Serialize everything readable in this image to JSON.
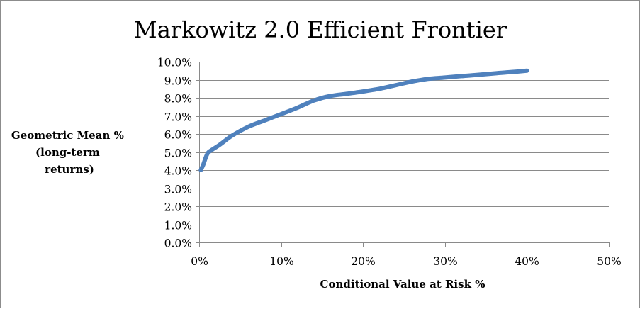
{
  "chart_data": {
    "type": "line",
    "title": "Markowitz 2.0 Efficient Frontier",
    "xlabel": "Conditional Value at Risk %",
    "ylabel_lines": [
      "Geometric Mean %",
      "(long-term",
      "returns)"
    ],
    "xlim": [
      0,
      50
    ],
    "ylim": [
      0,
      10
    ],
    "x_ticks": [
      0,
      10,
      20,
      30,
      40,
      50
    ],
    "x_tick_labels": [
      "0%",
      "10%",
      "20%",
      "30%",
      "40%",
      "50%"
    ],
    "y_ticks": [
      0,
      1,
      2,
      3,
      4,
      5,
      6,
      7,
      8,
      9,
      10
    ],
    "y_tick_labels": [
      "0.0%",
      "1.0%",
      "2.0%",
      "3.0%",
      "4.0%",
      "5.0%",
      "6.0%",
      "7.0%",
      "8.0%",
      "9.0%",
      "10.0%"
    ],
    "grid": true,
    "legend": false,
    "series": [
      {
        "color": "#4f81bd",
        "x": [
          0.2,
          0.5,
          1.0,
          1.5,
          2.5,
          4.0,
          6.0,
          8.0,
          10.0,
          12.0,
          14.0,
          16.0,
          18.0,
          20.0,
          22.0,
          24.0,
          26.0,
          28.0,
          30.0,
          32.0,
          34.0,
          36.0,
          38.0,
          40.0
        ],
        "y": [
          4.0,
          4.3,
          4.9,
          5.1,
          5.4,
          5.9,
          6.4,
          6.75,
          7.1,
          7.45,
          7.85,
          8.1,
          8.22,
          8.35,
          8.5,
          8.7,
          8.9,
          9.05,
          9.12,
          9.2,
          9.27,
          9.35,
          9.42,
          9.5
        ]
      }
    ]
  }
}
